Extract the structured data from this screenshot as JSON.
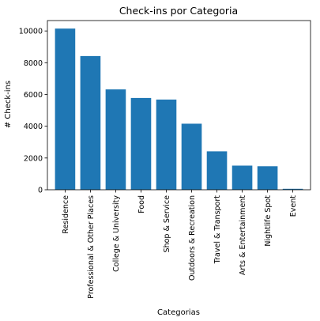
{
  "chart_data": {
    "type": "bar",
    "title": "Check-ins por Categoria",
    "xlabel": "Categorias",
    "ylabel": "# Check-ins",
    "categories": [
      "Residence",
      "Professional & Other Places",
      "College & University",
      "Food",
      "Shop & Service",
      "Outdoors & Recreation",
      "Travel & Transport",
      "Arts & Entertainment",
      "Nightlife Spot",
      "Event"
    ],
    "values": [
      10150,
      8420,
      6320,
      5780,
      5680,
      4160,
      2420,
      1520,
      1480,
      60
    ],
    "ylim": [
      0,
      10655
    ],
    "yticks": [
      0,
      2000,
      4000,
      6000,
      8000,
      10000
    ],
    "ytick_labels": [
      "0",
      "2000",
      "4000",
      "6000",
      "8000",
      "10000"
    ],
    "bar_color": "#1f77b4",
    "grid": false
  }
}
